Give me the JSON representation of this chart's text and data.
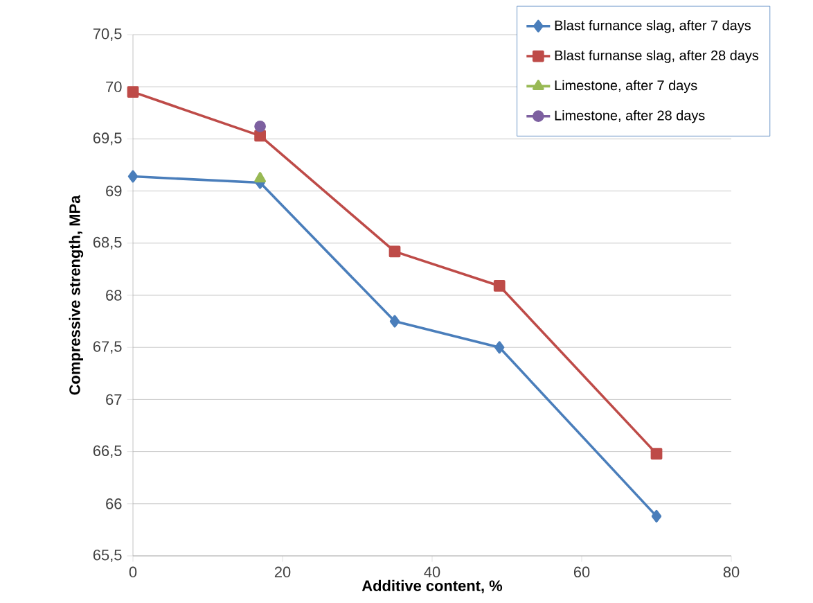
{
  "chart_data": {
    "type": "line",
    "xlabel": "Additive content, %",
    "ylabel": "Compressive strength, MPa",
    "xlim": [
      0,
      80
    ],
    "xticks": [
      0,
      20,
      40,
      60,
      80
    ],
    "ylim": [
      65.5,
      70.5
    ],
    "yticks": [
      {
        "value": 65.5,
        "label": "65,5"
      },
      66,
      {
        "value": 66.5,
        "label": "66,5"
      },
      67,
      {
        "value": 67.5,
        "label": "67,5"
      },
      68,
      {
        "value": 68.5,
        "label": "68,5"
      },
      69,
      {
        "value": 69.5,
        "label": "69,5"
      },
      70,
      {
        "value": 70.5,
        "label": "70,5"
      }
    ],
    "grid": "y",
    "legend": "top right",
    "series": [
      {
        "name": "Blast furnance slag, after 7 days",
        "color": "#4a7ebb",
        "marker": "diamond",
        "x": [
          0,
          17,
          35,
          49,
          70
        ],
        "values": [
          69.14,
          69.08,
          67.75,
          67.5,
          65.88
        ]
      },
      {
        "name": "Blast furnanse slag, after 28 days",
        "color": "#be4b48",
        "marker": "square",
        "x": [
          0,
          17,
          35,
          49,
          70
        ],
        "values": [
          69.95,
          69.53,
          68.42,
          68.09,
          66.48
        ]
      },
      {
        "name": "Limestone, after 7 days",
        "color": "#98b954",
        "marker": "triangle",
        "x": [
          17
        ],
        "values": [
          69.12
        ]
      },
      {
        "name": "Limestone, after 28 days",
        "color": "#7d60a0",
        "marker": "circle",
        "x": [
          17
        ],
        "values": [
          69.62
        ]
      }
    ]
  }
}
